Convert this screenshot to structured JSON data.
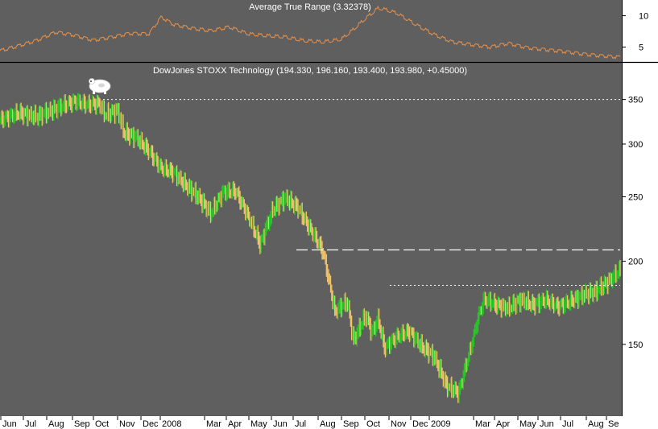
{
  "colors": {
    "background": "#5f5f5f",
    "up_bar": "#22cc22",
    "down_bar": "#f2c56b",
    "atr_line": "#e8914a",
    "axis_strip": "#ffffff",
    "divider": "#000000",
    "reference_lines": "#ffffff"
  },
  "chart_data": [
    {
      "type": "line",
      "title": "Average True Range (3.32378)",
      "x_tick_labels": [
        "Jun",
        "Jul",
        "Aug",
        "Sep",
        "Oct",
        "Nov",
        "Dec",
        "2008",
        "Mar",
        "Apr",
        "May",
        "Jun",
        "Jul",
        "Aug",
        "Sep",
        "Oct",
        "Nov",
        "Dec",
        "2009",
        "Mar",
        "Apr",
        "May",
        "Jun",
        "Jul",
        "Aug",
        "Se"
      ],
      "y_ticks": [
        5,
        10
      ],
      "ylim": [
        3,
        12
      ],
      "grid": false,
      "series": [
        {
          "x_fraction_of_period": [
            0.0,
            0.03,
            0.06,
            0.09,
            0.12,
            0.15,
            0.18,
            0.21,
            0.24,
            0.26,
            0.28,
            0.31,
            0.34,
            0.37,
            0.4,
            0.43,
            0.46,
            0.49,
            0.52,
            0.55,
            0.57,
            0.59,
            0.61,
            0.62,
            0.64,
            0.67,
            0.7,
            0.73,
            0.76,
            0.79,
            0.82,
            0.85,
            0.88,
            0.91,
            0.94,
            0.97,
            1.0
          ],
          "values": [
            4.4,
            5.2,
            6.1,
            7.4,
            6.9,
            6.1,
            6.6,
            7.2,
            7.1,
            9.8,
            8.6,
            8.0,
            7.6,
            8.2,
            7.1,
            6.8,
            6.6,
            6.0,
            5.8,
            6.2,
            7.8,
            9.6,
            11.2,
            11.0,
            10.4,
            8.6,
            7.0,
            5.8,
            5.4,
            5.0,
            5.6,
            4.9,
            4.6,
            4.3,
            3.9,
            3.6,
            3.4
          ]
        }
      ]
    },
    {
      "type": "bar",
      "title": "DowJones STOXX Technology (194.330, 196.160, 193.400, 193.980, +0.45000)",
      "x_tick_labels": [
        "Jun",
        "Jul",
        "Aug",
        "Sep",
        "Oct",
        "Nov",
        "Dec",
        "2008",
        "Mar",
        "Apr",
        "May",
        "Jun",
        "Jul",
        "Aug",
        "Sep",
        "Oct",
        "Nov",
        "Dec",
        "2009",
        "Mar",
        "Apr",
        "May",
        "Jun",
        "Jul",
        "Aug",
        "Se"
      ],
      "y_ticks": [
        150,
        200,
        250,
        300,
        350
      ],
      "y_scale": "log",
      "ylim": [
        118,
        378
      ],
      "grid": false,
      "series": [
        {
          "name": "close",
          "x_fraction_of_period": [
            0.0,
            0.03,
            0.06,
            0.09,
            0.12,
            0.14,
            0.16,
            0.17,
            0.19,
            0.2,
            0.22,
            0.24,
            0.26,
            0.28,
            0.3,
            0.32,
            0.34,
            0.36,
            0.38,
            0.4,
            0.42,
            0.44,
            0.46,
            0.48,
            0.5,
            0.52,
            0.54,
            0.56,
            0.57,
            0.59,
            0.6,
            0.61,
            0.62,
            0.64,
            0.66,
            0.68,
            0.7,
            0.72,
            0.74,
            0.76,
            0.77,
            0.78,
            0.79,
            0.8,
            0.82,
            0.84,
            0.86,
            0.88,
            0.9,
            0.92,
            0.94,
            0.96,
            0.98,
            1.0
          ],
          "values": [
            326,
            334,
            330,
            339,
            348,
            344,
            345,
            332,
            337,
            312,
            307,
            293,
            276,
            272,
            260,
            250,
            236,
            254,
            255,
            234,
            212,
            239,
            249,
            241,
            224,
            208,
            168,
            174,
            152,
            166,
            156,
            164,
            148,
            154,
            157,
            149,
            144,
            130,
            127,
            149,
            163,
            175,
            174,
            172,
            170,
            175,
            172,
            175,
            171,
            174,
            178,
            180,
            186,
            194
          ]
        }
      ],
      "reference_lines": [
        {
          "value": 350,
          "style": "dotted"
        },
        {
          "value": 208,
          "style": "dashed"
        },
        {
          "value": 184,
          "style": "dotted"
        }
      ]
    }
  ]
}
